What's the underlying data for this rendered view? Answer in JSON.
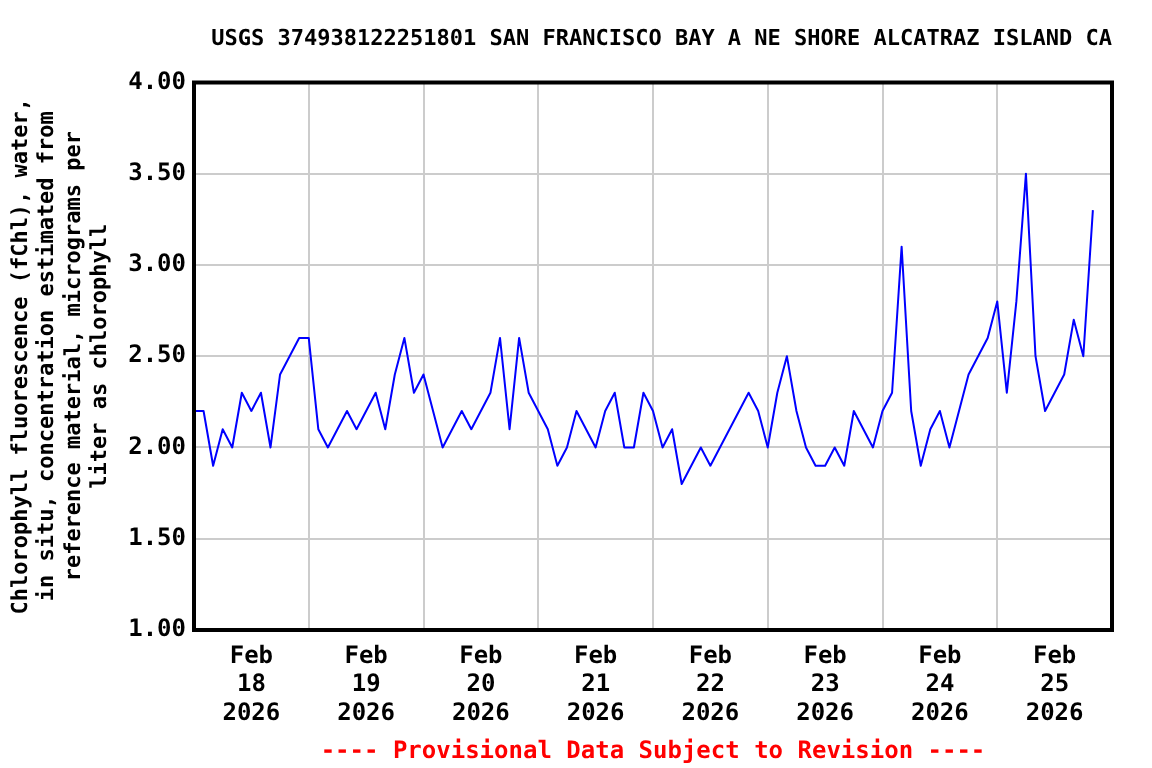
{
  "chart_data": {
    "type": "line",
    "title": "USGS 374938122251801 SAN FRANCISCO BAY A NE SHORE ALCATRAZ ISLAND CA",
    "ylabel": "Chlorophyll fluorescence (fChl), water, in situ, concentration estimated from reference material, micrograms per liter as chlorophyll",
    "annotations": [
      "---- Provisional Data Subject to Revision ----"
    ],
    "x": [
      "2026-02-18T00:00",
      "2026-02-18T02:00",
      "2026-02-18T04:00",
      "2026-02-18T06:00",
      "2026-02-18T08:00",
      "2026-02-18T10:00",
      "2026-02-18T12:00",
      "2026-02-18T14:00",
      "2026-02-18T16:00",
      "2026-02-18T18:00",
      "2026-02-18T20:00",
      "2026-02-18T22:00",
      "2026-02-19T00:00",
      "2026-02-19T02:00",
      "2026-02-19T04:00",
      "2026-02-19T06:00",
      "2026-02-19T08:00",
      "2026-02-19T10:00",
      "2026-02-19T12:00",
      "2026-02-19T14:00",
      "2026-02-19T16:00",
      "2026-02-19T18:00",
      "2026-02-19T20:00",
      "2026-02-19T22:00",
      "2026-02-20T00:00",
      "2026-02-20T02:00",
      "2026-02-20T04:00",
      "2026-02-20T06:00",
      "2026-02-20T08:00",
      "2026-02-20T10:00",
      "2026-02-20T12:00",
      "2026-02-20T14:00",
      "2026-02-20T16:00",
      "2026-02-20T18:00",
      "2026-02-20T20:00",
      "2026-02-20T22:00",
      "2026-02-21T00:00",
      "2026-02-21T02:00",
      "2026-02-21T04:00",
      "2026-02-21T06:00",
      "2026-02-21T08:00",
      "2026-02-21T10:00",
      "2026-02-21T12:00",
      "2026-02-21T14:00",
      "2026-02-21T16:00",
      "2026-02-21T18:00",
      "2026-02-21T20:00",
      "2026-02-21T22:00",
      "2026-02-22T00:00",
      "2026-02-22T02:00",
      "2026-02-22T04:00",
      "2026-02-22T06:00",
      "2026-02-22T08:00",
      "2026-02-22T10:00",
      "2026-02-22T12:00",
      "2026-02-22T14:00",
      "2026-02-22T16:00",
      "2026-02-22T18:00",
      "2026-02-22T20:00",
      "2026-02-22T22:00",
      "2026-02-23T00:00",
      "2026-02-23T02:00",
      "2026-02-23T04:00",
      "2026-02-23T06:00",
      "2026-02-23T08:00",
      "2026-02-23T10:00",
      "2026-02-23T12:00",
      "2026-02-23T14:00",
      "2026-02-23T16:00",
      "2026-02-23T18:00",
      "2026-02-23T20:00",
      "2026-02-23T22:00",
      "2026-02-24T00:00",
      "2026-02-24T02:00",
      "2026-02-24T04:00",
      "2026-02-24T06:00",
      "2026-02-24T08:00",
      "2026-02-24T10:00",
      "2026-02-24T12:00",
      "2026-02-24T14:00",
      "2026-02-24T16:00",
      "2026-02-24T18:00",
      "2026-02-24T20:00",
      "2026-02-24T22:00",
      "2026-02-25T00:00",
      "2026-02-25T02:00",
      "2026-02-25T04:00",
      "2026-02-25T06:00",
      "2026-02-25T08:00",
      "2026-02-25T10:00",
      "2026-02-25T12:00",
      "2026-02-25T14:00",
      "2026-02-25T16:00",
      "2026-02-25T18:00",
      "2026-02-25T20:00"
    ],
    "series": [
      {
        "color": "#0000ff",
        "values": [
          2.2,
          2.2,
          1.9,
          2.1,
          2.0,
          2.3,
          2.2,
          2.3,
          2.0,
          2.4,
          2.5,
          2.6,
          2.6,
          2.1,
          2.0,
          2.1,
          2.2,
          2.1,
          2.2,
          2.3,
          2.1,
          2.4,
          2.6,
          2.3,
          2.4,
          2.2,
          2.0,
          2.1,
          2.2,
          2.1,
          2.2,
          2.3,
          2.6,
          2.1,
          2.6,
          2.3,
          2.2,
          2.1,
          1.9,
          2.0,
          2.2,
          2.1,
          2.0,
          2.2,
          2.3,
          2.0,
          2.0,
          2.3,
          2.2,
          2.0,
          2.1,
          1.8,
          1.9,
          2.0,
          1.9,
          2.0,
          2.1,
          2.2,
          2.3,
          2.2,
          2.0,
          2.3,
          2.5,
          2.2,
          2.0,
          1.9,
          1.9,
          2.0,
          1.9,
          2.2,
          2.1,
          2.0,
          2.2,
          2.3,
          3.1,
          2.2,
          1.9,
          2.1,
          2.2,
          2.0,
          2.2,
          2.4,
          2.5,
          2.6,
          2.8,
          2.3,
          2.8,
          3.5,
          2.5,
          2.2,
          2.3,
          2.4,
          2.7,
          2.5,
          3.3
        ]
      }
    ],
    "xlim": [
      "2026-02-18T00:00",
      "2026-02-26T00:00"
    ],
    "xticks": [
      {
        "value": "2026-02-18T00:00",
        "label": null
      },
      {
        "value": "2026-02-18T12:00",
        "label": "Feb 18 2026"
      },
      {
        "value": "2026-02-19T00:00",
        "label": null
      },
      {
        "value": "2026-02-19T12:00",
        "label": "Feb 19 2026"
      },
      {
        "value": "2026-02-20T00:00",
        "label": null
      },
      {
        "value": "2026-02-20T12:00",
        "label": "Feb 20 2026"
      },
      {
        "value": "2026-02-21T00:00",
        "label": null
      },
      {
        "value": "2026-02-21T12:00",
        "label": "Feb 21 2026"
      },
      {
        "value": "2026-02-22T00:00",
        "label": null
      },
      {
        "value": "2026-02-22T12:00",
        "label": "Feb 22 2026"
      },
      {
        "value": "2026-02-23T00:00",
        "label": null
      },
      {
        "value": "2026-02-23T12:00",
        "label": "Feb 23 2026"
      },
      {
        "value": "2026-02-24T00:00",
        "label": null
      },
      {
        "value": "2026-02-24T12:00",
        "label": "Feb 24 2026"
      },
      {
        "value": "2026-02-25T00:00",
        "label": null
      },
      {
        "value": "2026-02-25T12:00",
        "label": "Feb 25 2026"
      },
      {
        "value": "2026-02-26T00:00",
        "label": null
      }
    ],
    "ylim": [
      1,
      4
    ],
    "yticks": [
      {
        "value": 1,
        "label": "1.00"
      },
      {
        "value": 1.5,
        "label": "1.50"
      },
      {
        "value": 2,
        "label": "2.00"
      },
      {
        "value": 2.5,
        "label": "2.50"
      },
      {
        "value": 3,
        "label": "3.00"
      },
      {
        "value": 3.5,
        "label": "3.50"
      },
      {
        "value": 4,
        "label": "4.00"
      }
    ],
    "grid": true,
    "legend": false,
    "marker": "none",
    "line_style": "solid"
  }
}
